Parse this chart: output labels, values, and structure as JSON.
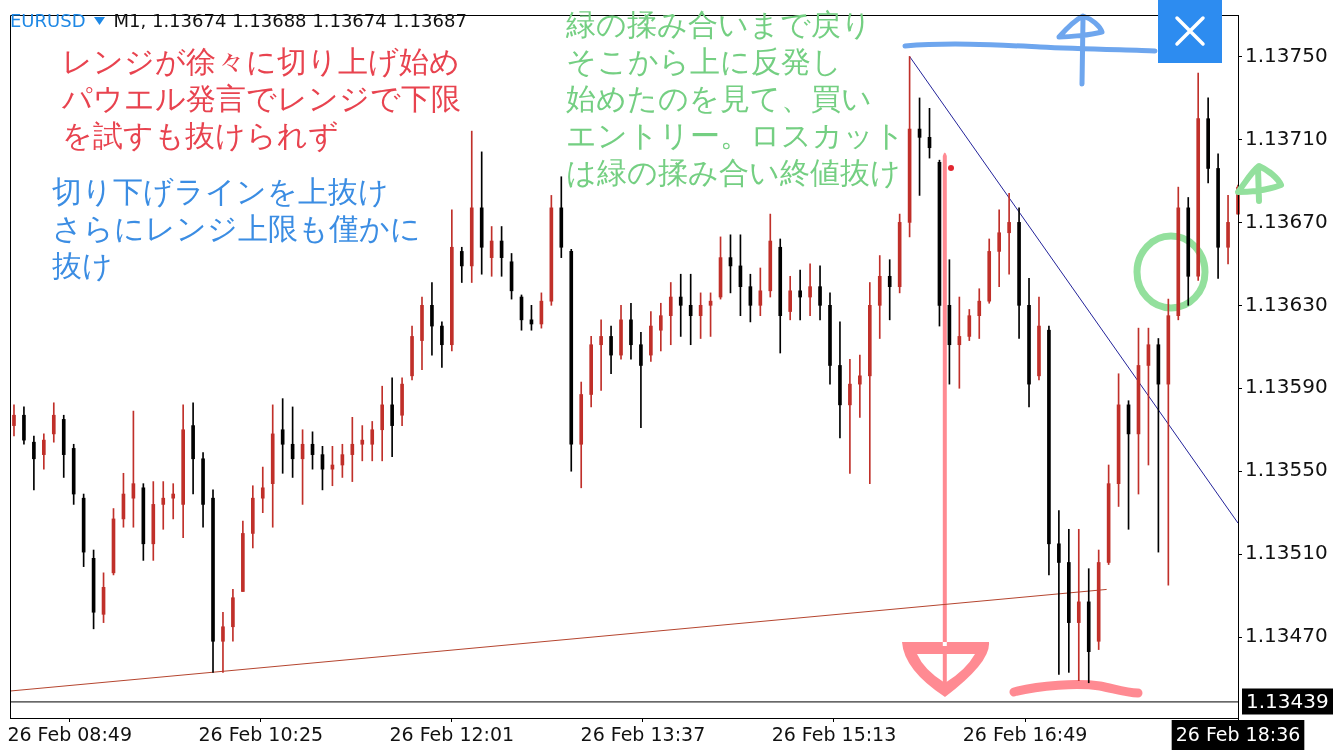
{
  "chart_data": {
    "type": "candlestick",
    "title": "EURUSD",
    "subtitle": "M1, 1.13674 1.13688 1.13674 1.13687",
    "x": [
      "--02-26T08:21",
      "--02-26T08:26",
      "--02-26T08:31",
      "--02-26T08:36",
      "--02-26T08:41",
      "--02-26T08:46",
      "--02-26T08:51",
      "--02-26T08:56",
      "--02-26T09:01",
      "--02-26T09:06",
      "--02-26T09:11",
      "--02-26T09:16",
      "--02-26T09:21",
      "--02-26T09:26",
      "--02-26T09:31",
      "--02-26T09:36",
      "--02-26T09:41",
      "--02-26T09:46",
      "--02-26T09:51",
      "--02-26T09:56",
      "--02-26T10:01",
      "--02-26T10:06",
      "--02-26T10:11",
      "--02-26T10:16",
      "--02-26T10:21",
      "--02-26T10:26",
      "--02-26T10:31",
      "--02-26T10:36",
      "--02-26T10:41",
      "--02-26T10:46",
      "--02-26T10:51",
      "--02-26T10:56",
      "--02-26T11:01",
      "--02-26T11:06",
      "--02-26T11:11",
      "--02-26T11:16",
      "--02-26T11:21",
      "--02-26T11:26",
      "--02-26T11:31",
      "--02-26T11:36",
      "--02-26T11:41",
      "--02-26T11:46",
      "--02-26T11:51",
      "--02-26T11:56",
      "--02-26T12:01",
      "--02-26T12:06",
      "--02-26T12:11",
      "--02-26T12:16",
      "--02-26T12:21",
      "--02-26T12:26",
      "--02-26T12:31",
      "--02-26T12:36",
      "--02-26T12:41",
      "--02-26T12:46",
      "--02-26T12:51",
      "--02-26T12:56",
      "--02-26T13:01",
      "--02-26T13:06",
      "--02-26T13:11",
      "--02-26T13:16",
      "--02-26T13:21",
      "--02-26T13:26",
      "--02-26T13:31",
      "--02-26T13:36",
      "--02-26T13:41",
      "--02-26T13:46",
      "--02-26T13:51",
      "--02-26T13:56",
      "--02-26T14:01",
      "--02-26T14:06",
      "--02-26T14:11",
      "--02-26T14:16",
      "--02-26T14:21",
      "--02-26T14:26",
      "--02-26T14:31",
      "--02-26T14:36",
      "--02-26T14:41",
      "--02-26T14:46",
      "--02-26T14:51",
      "--02-26T14:56",
      "--02-26T15:01",
      "--02-26T15:06",
      "--02-26T15:11",
      "--02-26T15:16",
      "--02-26T15:21",
      "--02-26T15:26",
      "--02-26T15:31",
      "--02-26T15:36",
      "--02-26T15:41",
      "--02-26T15:46",
      "--02-26T15:51",
      "--02-26T15:56",
      "--02-26T16:01",
      "--02-26T16:06",
      "--02-26T16:11",
      "--02-26T16:16",
      "--02-26T16:21",
      "--02-26T16:26",
      "--02-26T16:31",
      "--02-26T16:36",
      "--02-26T16:41",
      "--02-26T16:46",
      "--02-26T16:51",
      "--02-26T16:56",
      "--02-26T17:01",
      "--02-26T17:06",
      "--02-26T17:11",
      "--02-26T17:16",
      "--02-26T17:21",
      "--02-26T17:26",
      "--02-26T17:31",
      "--02-26T17:36",
      "--02-26T17:41",
      "--02-26T17:46",
      "--02-26T17:51",
      "--02-26T17:56",
      "--02-26T18:01",
      "--02-26T18:06",
      "--02-26T18:11",
      "--02-26T18:16",
      "--02-26T18:21",
      "--02-26T18:26",
      "--02-26T18:31",
      "--02-26T18:36"
    ],
    "ohlc": [
      [
        1.13572,
        1.13582,
        1.13567,
        1.13577
      ],
      [
        1.13577,
        1.13581,
        1.13563,
        1.13565
      ],
      [
        1.13564,
        1.13567,
        1.13541,
        1.13556
      ],
      [
        1.13558,
        1.13568,
        1.13551,
        1.13565
      ],
      [
        1.13568,
        1.13583,
        1.13564,
        1.13577
      ],
      [
        1.13575,
        1.13577,
        1.13547,
        1.13558
      ],
      [
        1.13561,
        1.13563,
        1.13534,
        1.13539
      ],
      [
        1.13537,
        1.13539,
        1.13504,
        1.13511
      ],
      [
        1.13508,
        1.13512,
        1.13474,
        1.13482
      ],
      [
        1.13481,
        1.13501,
        1.13477,
        1.13494
      ],
      [
        1.13501,
        1.13532,
        1.135,
        1.13527
      ],
      [
        1.13527,
        1.13549,
        1.13523,
        1.13539
      ],
      [
        1.13537,
        1.13579,
        1.13523,
        1.13544
      ],
      [
        1.13542,
        1.13544,
        1.13507,
        1.13515
      ],
      [
        1.13515,
        1.13545,
        1.13507,
        1.13534
      ],
      [
        1.13534,
        1.13545,
        1.13522,
        1.13537
      ],
      [
        1.13537,
        1.13544,
        1.13527,
        1.13539
      ],
      [
        1.13534,
        1.13582,
        1.13518,
        1.1357
      ],
      [
        1.13572,
        1.13583,
        1.13539,
        1.13556
      ],
      [
        1.13556,
        1.13559,
        1.13523,
        1.13534
      ],
      [
        1.13537,
        1.13541,
        1.13453,
        1.13468
      ],
      [
        1.13468,
        1.13482,
        1.13453,
        1.13475
      ],
      [
        1.13475,
        1.13493,
        1.13468,
        1.13489
      ],
      [
        1.13492,
        1.13526,
        1.13492,
        1.1352
      ],
      [
        1.1352,
        1.13543,
        1.13513,
        1.13537
      ],
      [
        1.13537,
        1.13552,
        1.1353,
        1.13542
      ],
      [
        1.13544,
        1.13582,
        1.13523,
        1.13568
      ],
      [
        1.1357,
        1.13585,
        1.13549,
        1.13563
      ],
      [
        1.13563,
        1.13581,
        1.13547,
        1.13556
      ],
      [
        1.13556,
        1.1357,
        1.13534,
        1.13563
      ],
      [
        1.13563,
        1.13569,
        1.13551,
        1.13558
      ],
      [
        1.13558,
        1.13562,
        1.13541,
        1.13551
      ],
      [
        1.13551,
        1.13562,
        1.13543,
        1.13553
      ],
      [
        1.13553,
        1.13563,
        1.13547,
        1.13558
      ],
      [
        1.13558,
        1.13576,
        1.13545,
        1.13563
      ],
      [
        1.13563,
        1.13572,
        1.13555,
        1.13565
      ],
      [
        1.13563,
        1.13574,
        1.13555,
        1.1357
      ],
      [
        1.1357,
        1.13591,
        1.13555,
        1.13582
      ],
      [
        1.13582,
        1.13595,
        1.13557,
        1.13572
      ],
      [
        1.13577,
        1.13595,
        1.13572,
        1.13592
      ],
      [
        1.13596,
        1.1362,
        1.13594,
        1.13615
      ],
      [
        1.13613,
        1.13634,
        1.13599,
        1.1363
      ],
      [
        1.1363,
        1.13641,
        1.13606,
        1.1362
      ],
      [
        1.1362,
        1.13622,
        1.136,
        1.13611
      ],
      [
        1.13611,
        1.13676,
        1.13608,
        1.13658
      ],
      [
        1.13656,
        1.13658,
        1.13641,
        1.13649
      ],
      [
        1.13649,
        1.13714,
        1.13641,
        1.13677
      ],
      [
        1.13677,
        1.13704,
        1.13645,
        1.13658
      ],
      [
        1.13653,
        1.13668,
        1.13644,
        1.13661
      ],
      [
        1.13661,
        1.13668,
        1.13644,
        1.13653
      ],
      [
        1.13651,
        1.13655,
        1.13633,
        1.13637
      ],
      [
        1.13634,
        1.13635,
        1.13618,
        1.13623
      ],
      [
        1.13623,
        1.1363,
        1.13618,
        1.13621
      ],
      [
        1.13621,
        1.13636,
        1.13619,
        1.13632
      ],
      [
        1.13632,
        1.13683,
        1.1363,
        1.13677
      ],
      [
        1.13677,
        1.13692,
        1.13653,
        1.13658
      ],
      [
        1.13656,
        1.13657,
        1.1355,
        1.13563
      ],
      [
        1.13563,
        1.13593,
        1.13542,
        1.13587
      ],
      [
        1.13587,
        1.13615,
        1.13581,
        1.13611
      ],
      [
        1.13611,
        1.13623,
        1.13589,
        1.13615
      ],
      [
        1.13615,
        1.1362,
        1.13597,
        1.13606
      ],
      [
        1.13606,
        1.1363,
        1.13604,
        1.13623
      ],
      [
        1.13623,
        1.13631,
        1.13604,
        1.13611
      ],
      [
        1.13611,
        1.13617,
        1.13571,
        1.13601
      ],
      [
        1.13606,
        1.13627,
        1.13603,
        1.1362
      ],
      [
        1.13618,
        1.13631,
        1.13608,
        1.13625
      ],
      [
        1.13625,
        1.13641,
        1.13611,
        1.13634
      ],
      [
        1.13634,
        1.13645,
        1.13615,
        1.1363
      ],
      [
        1.1363,
        1.13645,
        1.13611,
        1.13625
      ],
      [
        1.13625,
        1.13636,
        1.13614,
        1.1363
      ],
      [
        1.1363,
        1.13636,
        1.13615,
        1.13632
      ],
      [
        1.13634,
        1.13663,
        1.13633,
        1.13653
      ],
      [
        1.13653,
        1.13664,
        1.13636,
        1.13649
      ],
      [
        1.13649,
        1.13664,
        1.13625,
        1.13639
      ],
      [
        1.13639,
        1.13645,
        1.13622,
        1.1363
      ],
      [
        1.1363,
        1.13648,
        1.13625,
        1.13637
      ],
      [
        1.13637,
        1.13674,
        1.13634,
        1.13661
      ],
      [
        1.13658,
        1.13662,
        1.13607,
        1.13625
      ],
      [
        1.13627,
        1.13644,
        1.13623,
        1.13637
      ],
      [
        1.13637,
        1.13647,
        1.13623,
        1.13634
      ],
      [
        1.13634,
        1.1365,
        1.13625,
        1.13639
      ],
      [
        1.13639,
        1.13649,
        1.13623,
        1.1363
      ],
      [
        1.1363,
        1.13636,
        1.13592,
        1.13601
      ],
      [
        1.13601,
        1.13622,
        1.13566,
        1.13582
      ],
      [
        1.13582,
        1.13604,
        1.13549,
        1.13592
      ],
      [
        1.13592,
        1.13606,
        1.13576,
        1.13596
      ],
      [
        1.13596,
        1.13641,
        1.13544,
        1.1363
      ],
      [
        1.1363,
        1.13654,
        1.13614,
        1.13644
      ],
      [
        1.13644,
        1.13652,
        1.13623,
        1.13639
      ],
      [
        1.13639,
        1.13674,
        1.13636,
        1.1367
      ],
      [
        1.1367,
        1.1375,
        1.13663,
        1.13715
      ],
      [
        1.13715,
        1.1373,
        1.13683,
        1.13711
      ],
      [
        1.13711,
        1.13725,
        1.13701,
        1.13706
      ],
      [
        1.13699,
        1.137,
        1.1362,
        1.1363
      ],
      [
        1.1363,
        1.13652,
        1.13592,
        1.13611
      ],
      [
        1.13611,
        1.13634,
        1.1359,
        1.13615
      ],
      [
        1.13615,
        1.13628,
        1.13613,
        1.13625
      ],
      [
        1.13625,
        1.13638,
        1.13614,
        1.13632
      ],
      [
        1.13632,
        1.13662,
        1.13631,
        1.13656
      ],
      [
        1.13656,
        1.13676,
        1.13639,
        1.13665
      ],
      [
        1.13665,
        1.13684,
        1.13645,
        1.1367
      ],
      [
        1.1367,
        1.13677,
        1.13614,
        1.1363
      ],
      [
        1.1363,
        1.13643,
        1.13581,
        1.13592
      ],
      [
        1.13596,
        1.13634,
        1.13594,
        1.1362
      ],
      [
        1.13618,
        1.1362,
        1.135,
        1.13515
      ],
      [
        1.13515,
        1.13531,
        1.13452,
        1.13506
      ],
      [
        1.13506,
        1.13522,
        1.13453,
        1.13477
      ],
      [
        1.13477,
        1.13522,
        1.13449,
        1.13487
      ],
      [
        1.13487,
        1.13503,
        1.13448,
        1.13463
      ],
      [
        1.13468,
        1.13512,
        1.13464,
        1.13506
      ],
      [
        1.13506,
        1.13553,
        1.13505,
        1.13544
      ],
      [
        1.13544,
        1.13597,
        1.13533,
        1.13582
      ],
      [
        1.13582,
        1.13584,
        1.13522,
        1.13568
      ],
      [
        1.13568,
        1.13619,
        1.13539,
        1.13601
      ],
      [
        1.13601,
        1.13619,
        1.13553,
        1.13611
      ],
      [
        1.13611,
        1.13614,
        1.13511,
        1.13592
      ],
      [
        1.13592,
        1.13633,
        1.13495,
        1.13625
      ],
      [
        1.13625,
        1.13687,
        1.13623,
        1.13677
      ],
      [
        1.13677,
        1.13682,
        1.1363,
        1.13644
      ],
      [
        1.13644,
        1.13742,
        1.13642,
        1.1372
      ],
      [
        1.1372,
        1.1373,
        1.13689,
        1.13696
      ],
      [
        1.13696,
        1.13703,
        1.13643,
        1.13658
      ],
      [
        1.13658,
        1.13683,
        1.1365,
        1.1367
      ],
      [
        1.13674,
        1.13688,
        1.13674,
        1.13687
      ]
    ],
    "colors": [
      "#c0302a",
      "#000000",
      "#000000",
      "#c0302a",
      "#c0302a",
      "#000000",
      "#000000",
      "#000000",
      "#000000",
      "#c0302a",
      "#c0302a",
      "#c0302a",
      "#c0302a",
      "#000000",
      "#c0302a",
      "#c0302a",
      "#c0302a",
      "#c0302a",
      "#000000",
      "#000000",
      "#000000",
      "#c0302a",
      "#c0302a",
      "#c0302a",
      "#c0302a",
      "#c0302a",
      "#c0302a",
      "#000000",
      "#000000",
      "#c0302a",
      "#000000",
      "#000000",
      "#c0302a",
      "#c0302a",
      "#c0302a",
      "#c0302a",
      "#c0302a",
      "#c0302a",
      "#000000",
      "#c0302a",
      "#c0302a",
      "#c0302a",
      "#000000",
      "#000000",
      "#c0302a",
      "#000000",
      "#c0302a",
      "#000000",
      "#c0302a",
      "#000000",
      "#000000",
      "#000000",
      "#000000",
      "#c0302a",
      "#c0302a",
      "#000000",
      "#000000",
      "#c0302a",
      "#c0302a",
      "#c0302a",
      "#000000",
      "#c0302a",
      "#000000",
      "#000000",
      "#c0302a",
      "#c0302a",
      "#c0302a",
      "#000000",
      "#000000",
      "#c0302a",
      "#c0302a",
      "#c0302a",
      "#000000",
      "#000000",
      "#000000",
      "#c0302a",
      "#c0302a",
      "#000000",
      "#c0302a",
      "#000000",
      "#c0302a",
      "#000000",
      "#000000",
      "#000000",
      "#c0302a",
      "#c0302a",
      "#c0302a",
      "#c0302a",
      "#000000",
      "#c0302a",
      "#c0302a",
      "#000000",
      "#000000",
      "#000000",
      "#000000",
      "#c0302a",
      "#c0302a",
      "#c0302a",
      "#c0302a",
      "#c0302a",
      "#c0302a",
      "#000000",
      "#000000",
      "#c0302a",
      "#000000",
      "#000000",
      "#000000",
      "#c0302a",
      "#000000",
      "#c0302a",
      "#c0302a",
      "#c0302a",
      "#000000",
      "#c0302a",
      "#c0302a",
      "#000000",
      "#c0302a",
      "#c0302a",
      "#000000",
      "#c0302a",
      "#000000",
      "#000000",
      "#c0302a",
      "#c0302a"
    ],
    "series": [
      {
        "type": "line",
        "x": [
          "--02-26T15:51",
          "--02-26T18:36"
        ],
        "values": [
          1.1375,
          1.13525
        ],
        "color": "#23239a"
      },
      {
        "type": "line",
        "x": [
          "--02-26T08:19",
          "--02-26T17:30"
        ],
        "values": [
          1.13444,
          1.13493
        ],
        "color": "#b5452f"
      }
    ],
    "xlim": [
      "--02-26T08:19",
      "--02-26T18:36"
    ],
    "ylim": [
      1.13431,
      1.1377
    ],
    "xticks": [
      {
        "value": "--02-26T08:49",
        "label": "26 Feb 08:49"
      },
      {
        "value": "--02-26T10:25",
        "label": "26 Feb 10:25"
      },
      {
        "value": "--02-26T12:01",
        "label": "26 Feb 12:01"
      },
      {
        "value": "--02-26T13:37",
        "label": "26 Feb 13:37"
      },
      {
        "value": "--02-26T15:13",
        "label": "26 Feb 15:13"
      },
      {
        "value": "--02-26T16:49",
        "label": "26 Feb 16:49"
      },
      {
        "value": "--02-26T18:36",
        "label": "26 Feb 18:36"
      }
    ],
    "yticks": [
      {
        "value": 1.1347,
        "label": "1.13470"
      },
      {
        "value": 1.1351,
        "label": "1.13510"
      },
      {
        "value": 1.1355,
        "label": "1.13550"
      },
      {
        "value": 1.1359,
        "label": "1.13590"
      },
      {
        "value": 1.1363,
        "label": "1.13630"
      },
      {
        "value": 1.1367,
        "label": "1.13670"
      },
      {
        "value": 1.1371,
        "label": "1.13710"
      },
      {
        "value": 1.1375,
        "label": "1.13750"
      }
    ],
    "ref_lines": [
      {
        "axis": "y",
        "value": 1.13439,
        "label": "1.13439",
        "color": "#000000"
      }
    ],
    "annotations": [
      "レンジが徐々に切り上げ始めパウエル発言でレンジで下限を試すも抜けられず",
      "切り下げラインを上抜けさらにレンジ上限も僅かに抜け",
      "緑の揉み合いまで戻りそこから上に反発し始めたのを見て、買いエントリー。ロスカットは緑の揉み合い終値抜け"
    ]
  }
}
